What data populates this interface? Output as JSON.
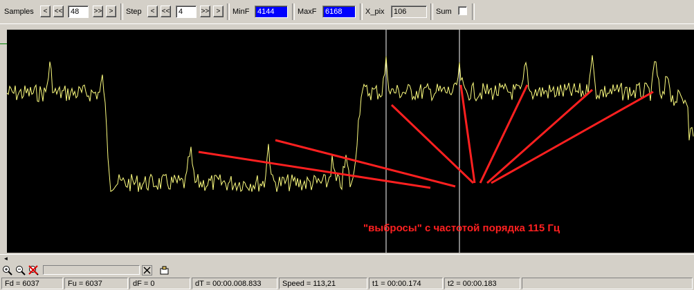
{
  "toolbar": {
    "samples_label": "Samples",
    "samples_value": "48",
    "step_label": "Step",
    "step_value": "4",
    "minf_label": "MinF",
    "minf_value": "4144",
    "maxf_label": "MaxF",
    "maxf_value": "6168",
    "xpix_label": "X_pix",
    "xpix_value": "106",
    "sum_label": "Sum",
    "sum_checked": false,
    "btn_prev": "<",
    "btn_rewind": "<<",
    "btn_fwd": ">>",
    "btn_next": ">"
  },
  "plot": {
    "annotation": "\"выбросы\" с частотой порядка  115 Гц",
    "trace_color": "#ffff80",
    "annotation_color": "#ff2020",
    "cursor_color": "#ffffff"
  },
  "status": {
    "fd": "Fd = 6037",
    "fu": "Fu = 6037",
    "df": "dF = 0",
    "dt": "dT = 00:00.008.833",
    "speed": "Speed = 113,21",
    "t1": "t1 = 00:00.174",
    "t2": "t2 = 00:00.183"
  },
  "icons": [
    "zoom-in-icon",
    "zoom-out-icon",
    "zoom-reset-icon",
    "clear-icon",
    "hand-icon"
  ]
}
